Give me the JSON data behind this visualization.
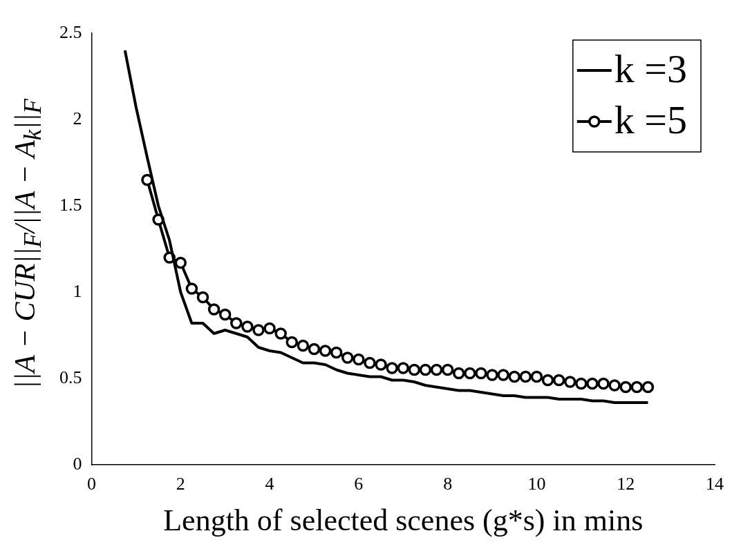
{
  "chart_data": {
    "type": "line",
    "xlabel": "Length of selected scenes (g*s) in mins",
    "ylabel": "||A − CUR||$_{F}$/||A − A$_{k}$||$_{F}$",
    "xlim": [
      0,
      14
    ],
    "xticks": [
      0,
      2,
      4,
      6,
      8,
      10,
      12,
      14
    ],
    "ylim": [
      0,
      2.5
    ],
    "yticks": [
      0,
      0.5,
      1,
      1.5,
      2,
      2.5
    ],
    "grid": false,
    "legend": "top right",
    "line_style": "solid",
    "series": [
      {
        "name": "k =3",
        "color": "#000000",
        "marker": "none",
        "x": [
          0.75,
          1,
          1.25,
          1.5,
          1.75,
          2,
          2.25,
          2.5,
          2.75,
          3,
          3.25,
          3.5,
          3.75,
          4,
          4.25,
          4.5,
          4.75,
          5,
          5.25,
          5.5,
          5.75,
          6,
          6.25,
          6.5,
          6.75,
          7,
          7.25,
          7.5,
          7.75,
          8,
          8.25,
          8.5,
          8.75,
          9,
          9.25,
          9.5,
          9.75,
          10,
          10.25,
          10.5,
          10.75,
          11,
          11.25,
          11.5,
          11.75,
          12,
          12.25,
          12.5
        ],
        "values": [
          2.4,
          2.07,
          1.78,
          1.5,
          1.3,
          1.0,
          0.82,
          0.82,
          0.76,
          0.78,
          0.76,
          0.74,
          0.68,
          0.66,
          0.65,
          0.62,
          0.59,
          0.59,
          0.58,
          0.55,
          0.53,
          0.52,
          0.51,
          0.51,
          0.49,
          0.49,
          0.48,
          0.46,
          0.45,
          0.44,
          0.43,
          0.43,
          0.42,
          0.41,
          0.4,
          0.4,
          0.39,
          0.39,
          0.39,
          0.38,
          0.38,
          0.38,
          0.37,
          0.37,
          0.36,
          0.36,
          0.36,
          0.36
        ]
      },
      {
        "name": "k =5",
        "color": "#000000",
        "marker": "circle",
        "x": [
          1.25,
          1.5,
          1.75,
          2,
          2.25,
          2.5,
          2.75,
          3,
          3.25,
          3.5,
          3.75,
          4,
          4.25,
          4.5,
          4.75,
          5,
          5.25,
          5.5,
          5.75,
          6,
          6.25,
          6.5,
          6.75,
          7,
          7.25,
          7.5,
          7.75,
          8,
          8.25,
          8.5,
          8.75,
          9,
          9.25,
          9.5,
          9.75,
          10,
          10.25,
          10.5,
          10.75,
          11,
          11.25,
          11.5,
          11.75,
          12,
          12.25,
          12.5
        ],
        "values": [
          1.65,
          1.42,
          1.2,
          1.17,
          1.02,
          0.97,
          0.9,
          0.87,
          0.82,
          0.8,
          0.78,
          0.79,
          0.76,
          0.71,
          0.69,
          0.67,
          0.66,
          0.65,
          0.62,
          0.61,
          0.59,
          0.58,
          0.56,
          0.56,
          0.55,
          0.55,
          0.55,
          0.55,
          0.53,
          0.53,
          0.53,
          0.52,
          0.52,
          0.51,
          0.51,
          0.51,
          0.49,
          0.49,
          0.48,
          0.47,
          0.47,
          0.47,
          0.46,
          0.45,
          0.45,
          0.45
        ]
      }
    ]
  }
}
